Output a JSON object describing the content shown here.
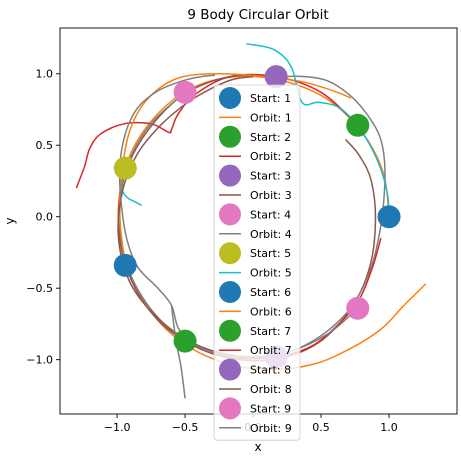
{
  "chart_data": {
    "type": "scatter",
    "title": "9 Body Circular Orbit",
    "xlabel": "x",
    "ylabel": "y",
    "xlim": [
      -1.42,
      1.5
    ],
    "ylim": [
      -1.38,
      1.32
    ],
    "xticks": [
      -1.0,
      -0.5,
      0.0,
      0.5,
      1.0
    ],
    "xtick_labels": [
      "−1.0",
      "−0.5",
      "0.0",
      "0.5",
      "1.0"
    ],
    "yticks": [
      -1.0,
      -0.5,
      0.0,
      0.5,
      1.0
    ],
    "ytick_labels": [
      "−1.0",
      "−0.5",
      "0.0",
      "0.5",
      "1.0"
    ],
    "grid": false,
    "legend_position": "center",
    "series": [
      {
        "name": "Start: 1",
        "kind": "start",
        "color": "#1f77b4",
        "x": [
          1.0
        ],
        "y": [
          0.0
        ]
      },
      {
        "name": "Orbit: 1",
        "kind": "orbit",
        "color": "#ff7f0e",
        "x": [
          1.0,
          0.96,
          0.81,
          0.55,
          0.22,
          -0.12,
          -0.45,
          -0.72,
          -0.91,
          -0.99,
          -0.95,
          -0.8,
          -0.55,
          -0.22,
          0.12,
          0.45,
          0.72,
          0.95,
          1.1,
          1.27
        ],
        "y": [
          0.0,
          0.3,
          0.58,
          0.82,
          0.95,
          0.98,
          0.9,
          0.7,
          0.42,
          0.08,
          -0.28,
          -0.6,
          -0.86,
          -1.02,
          -1.07,
          -1.03,
          -0.92,
          -0.78,
          -0.63,
          -0.47
        ]
      },
      {
        "name": "Start: 2",
        "kind": "start",
        "color": "#2ca02c",
        "x": [
          0.77
        ],
        "y": [
          0.64
        ]
      },
      {
        "name": "Orbit: 2",
        "kind": "orbit",
        "color": "#d62728",
        "x": [
          0.77,
          0.5,
          0.17,
          -0.17,
          -0.42,
          -0.55,
          -0.6,
          -0.62,
          -0.75,
          -0.95,
          -1.12,
          -1.2,
          -1.24,
          -1.3
        ],
        "y": [
          0.64,
          0.87,
          0.98,
          0.98,
          0.86,
          0.72,
          0.61,
          0.59,
          0.65,
          0.65,
          0.58,
          0.48,
          0.35,
          0.2
        ]
      },
      {
        "name": "Start: 3",
        "kind": "start",
        "color": "#9467bd",
        "x": [
          0.17
        ],
        "y": [
          0.98
        ]
      },
      {
        "name": "Orbit: 3",
        "kind": "orbit",
        "color": "#8c564b",
        "x": [
          0.17,
          -0.17,
          -0.5,
          -0.76,
          -0.93,
          -0.99,
          -0.94,
          -0.79,
          -0.55,
          -0.22,
          0.13,
          0.45,
          0.7,
          0.85,
          0.9,
          0.87,
          0.78,
          0.68
        ],
        "y": [
          0.98,
          0.98,
          0.86,
          0.62,
          0.33,
          0.0,
          -0.33,
          -0.62,
          -0.84,
          -0.98,
          -1.0,
          -0.9,
          -0.67,
          -0.38,
          -0.05,
          0.25,
          0.43,
          0.54
        ]
      },
      {
        "name": "Start: 4",
        "kind": "start",
        "color": "#e377c2",
        "x": [
          -0.5
        ],
        "y": [
          0.87
        ]
      },
      {
        "name": "Orbit: 4",
        "kind": "orbit",
        "color": "#7f7f7f",
        "x": [
          -0.5,
          -0.76,
          -0.93,
          -0.98,
          -0.93,
          -0.78,
          -0.55,
          -0.25,
          0.1,
          0.42,
          0.7,
          0.86,
          0.94,
          0.97,
          0.96,
          0.92,
          0.82,
          0.7,
          0.55,
          0.38,
          0.22,
          0.1
        ],
        "y": [
          0.87,
          0.64,
          0.34,
          0.0,
          -0.33,
          -0.61,
          -0.83,
          -0.95,
          -0.98,
          -0.88,
          -0.66,
          -0.38,
          -0.06,
          0.25,
          0.45,
          0.59,
          0.74,
          0.86,
          0.95,
          0.98,
          0.98,
          0.97
        ]
      },
      {
        "name": "Start: 5",
        "kind": "start",
        "color": "#bcbd22",
        "x": [
          -0.94
        ],
        "y": [
          0.34
        ]
      },
      {
        "name": "Orbit: 5",
        "kind": "orbit",
        "color": "#17becf",
        "x": [
          -0.94,
          -0.97,
          -0.96,
          -0.92,
          -0.86,
          -0.82
        ],
        "y": [
          0.34,
          0.25,
          0.18,
          0.13,
          0.1,
          0.08
        ]
      },
      {
        "name": "Start: 6",
        "kind": "start",
        "color": "#1f77b4",
        "x": [
          -0.94
        ],
        "y": [
          -0.34
        ]
      },
      {
        "name": "Orbit: 6",
        "kind": "orbit",
        "color": "#ff7f0e",
        "x": [
          -0.94,
          -0.98,
          -0.96,
          -0.9,
          -0.77,
          -0.55,
          -0.25,
          0.08,
          0.38,
          0.62,
          0.72
        ],
        "y": [
          -0.34,
          0.0,
          0.35,
          0.62,
          0.83,
          0.97,
          1.0,
          0.98,
          0.94,
          0.87,
          0.83
        ]
      },
      {
        "name": "Start: 7",
        "kind": "start",
        "color": "#2ca02c",
        "x": [
          -0.5
        ],
        "y": [
          -0.87
        ]
      },
      {
        "name": "Orbit: 7",
        "kind": "orbit",
        "color": "#d62728",
        "x": [
          -0.5,
          -0.25,
          0.08,
          0.4,
          0.62,
          0.78,
          0.88,
          0.94
        ],
        "y": [
          -0.87,
          -0.97,
          -0.99,
          -0.92,
          -0.76,
          -0.58,
          -0.35,
          -0.15
        ]
      },
      {
        "name": "Start: 8",
        "kind": "start",
        "color": "#9467bd",
        "x": [
          0.17
        ],
        "y": [
          -0.98
        ]
      },
      {
        "name": "Orbit: 8",
        "kind": "orbit",
        "color": "#8c564b",
        "x": [
          0.17,
          -0.16,
          -0.45,
          -0.7,
          -0.9,
          -0.99,
          -0.96,
          -0.85,
          -0.68,
          -0.48,
          -0.3,
          -0.15,
          0.0
        ],
        "y": [
          -0.98,
          -0.97,
          -0.88,
          -0.71,
          -0.47,
          -0.15,
          0.18,
          0.44,
          0.64,
          0.8,
          0.9,
          0.96,
          0.98
        ]
      },
      {
        "name": "Start: 9",
        "kind": "start",
        "color": "#e377c2",
        "x": [
          0.77
        ],
        "y": [
          -0.64
        ]
      },
      {
        "name": "Orbit: 9",
        "kind": "orbit",
        "color": "#7f7f7f",
        "x": [
          0.77,
          0.55,
          0.25,
          -0.05,
          -0.3,
          -0.45,
          -0.55,
          -0.6,
          -0.7,
          -0.85,
          -0.93,
          -0.97,
          -0.98,
          -0.94,
          -0.85,
          -0.7,
          -0.52,
          -0.38,
          -0.28
        ],
        "y": [
          -0.64,
          -0.82,
          -0.95,
          -0.98,
          -0.95,
          -0.88,
          -0.78,
          -0.62,
          -0.5,
          -0.35,
          -0.15,
          0.1,
          0.35,
          0.58,
          0.76,
          0.88,
          0.95,
          0.98,
          0.99
        ]
      },
      {
        "name": "",
        "kind": "orbit",
        "color": "#7f7f7f",
        "x": [
          -0.6,
          -0.57,
          -0.53,
          -0.5
        ],
        "y": [
          -0.62,
          -0.85,
          -1.05,
          -1.27
        ]
      },
      {
        "name": "",
        "kind": "orbit",
        "color": "#17becf",
        "x": [
          -0.05,
          0.15,
          0.28,
          0.36,
          0.48,
          0.62,
          0.75,
          0.86,
          0.94,
          0.99,
          1.0
        ],
        "y": [
          1.21,
          1.17,
          1.05,
          0.8,
          0.8,
          0.77,
          0.66,
          0.5,
          0.33,
          0.15,
          0.0
        ]
      }
    ]
  }
}
